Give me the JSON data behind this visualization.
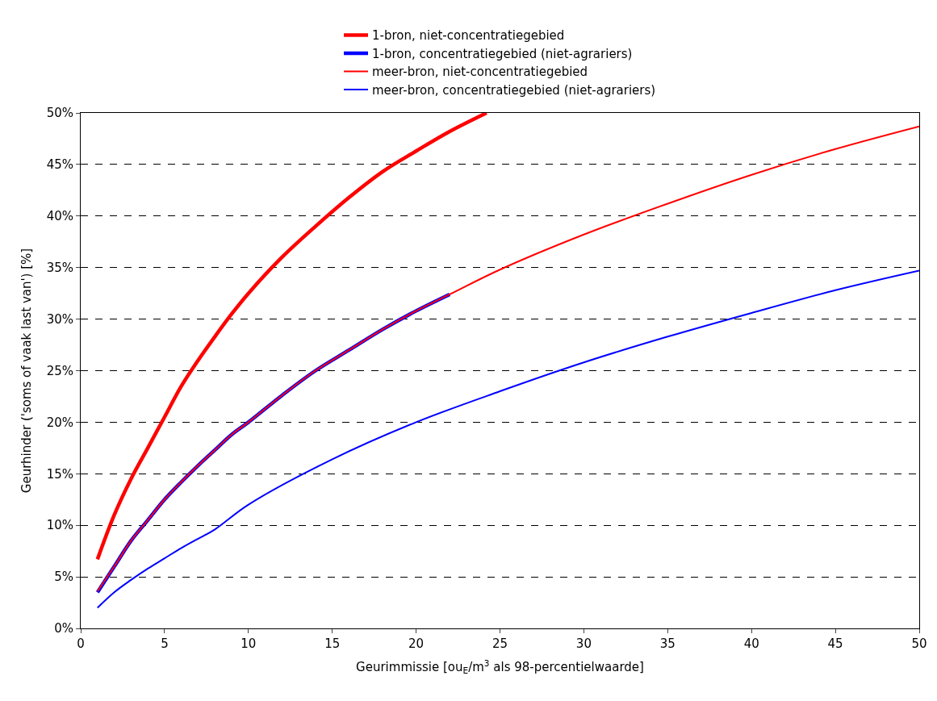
{
  "chart_data": {
    "type": "line",
    "xlabel": "Geurimmissie [ou$_{E}$/m$^{3}$ als 98-percentielwaarde]",
    "ylabel": "Geurhinder ('soms of vaak last van') [%]",
    "xlim": [
      0,
      50
    ],
    "xticks": [
      0,
      5,
      10,
      15,
      20,
      25,
      30,
      35,
      40,
      45,
      50
    ],
    "ylim": [
      0,
      50
    ],
    "yticks": [
      {
        "value": 0,
        "label": "0%"
      },
      {
        "value": 5,
        "label": "5%"
      },
      {
        "value": 10,
        "label": "10%"
      },
      {
        "value": 15,
        "label": "15%"
      },
      {
        "value": 20,
        "label": "20%"
      },
      {
        "value": 25,
        "label": "25%"
      },
      {
        "value": 30,
        "label": "30%"
      },
      {
        "value": 35,
        "label": "35%"
      },
      {
        "value": 40,
        "label": "40%"
      },
      {
        "value": 45,
        "label": "45%"
      },
      {
        "value": 50,
        "label": "50%"
      }
    ],
    "grid": "y",
    "legend": "top",
    "marker": "none",
    "line_style": "solid",
    "series": [
      {
        "name": "1-bron, niet-concentratiegebied",
        "color": "#ff0000",
        "x": [
          1,
          2,
          3,
          4,
          5,
          6,
          7,
          8,
          9,
          10,
          12,
          14,
          16,
          18,
          20,
          22,
          24.2
        ],
        "values": [
          6.7,
          11,
          14.5,
          17.5,
          20.5,
          23.5,
          26,
          28.3,
          30.5,
          32.5,
          36,
          39,
          41.8,
          44.3,
          46.3,
          48.2,
          50
        ]
      },
      {
        "name": "1-bron, concentratiegebied (niet-agrariers)",
        "color": "#0000ff",
        "x": [
          1,
          2,
          3,
          4,
          5,
          6,
          7,
          8,
          9,
          10,
          12,
          14,
          16,
          18,
          20,
          22
        ],
        "values": [
          3.5,
          6,
          8.5,
          10.5,
          12.5,
          14.2,
          15.8,
          17.3,
          18.8,
          20,
          22.6,
          25,
          27,
          29,
          30.8,
          32.4
        ]
      },
      {
        "name": "meer-bron, niet-concentratiegebied",
        "color": "#ff0000",
        "x": [
          1,
          2,
          3,
          4,
          5,
          6,
          7,
          8,
          9,
          10,
          12,
          14,
          16,
          18,
          20,
          22,
          25,
          30,
          35,
          40,
          45,
          50
        ],
        "values": [
          3.6,
          6,
          8.5,
          10.5,
          12.5,
          14.2,
          15.8,
          17.3,
          18.8,
          20,
          22.6,
          25,
          27,
          29,
          30.8,
          32.4,
          34.8,
          38.2,
          41.2,
          44,
          46.5,
          48.7
        ]
      },
      {
        "name": "meer-bron, concentratiegebied (niet-agrariers)",
        "color": "#0000ff",
        "x": [
          1,
          2,
          3,
          4,
          5,
          6,
          7,
          8,
          10,
          15,
          20,
          25,
          30,
          35,
          40,
          45,
          50
        ],
        "values": [
          2,
          3.5,
          4.7,
          5.8,
          6.8,
          7.8,
          8.7,
          9.6,
          12,
          16.4,
          20,
          23,
          25.8,
          28.3,
          30.6,
          32.8,
          34.7
        ]
      }
    ]
  }
}
